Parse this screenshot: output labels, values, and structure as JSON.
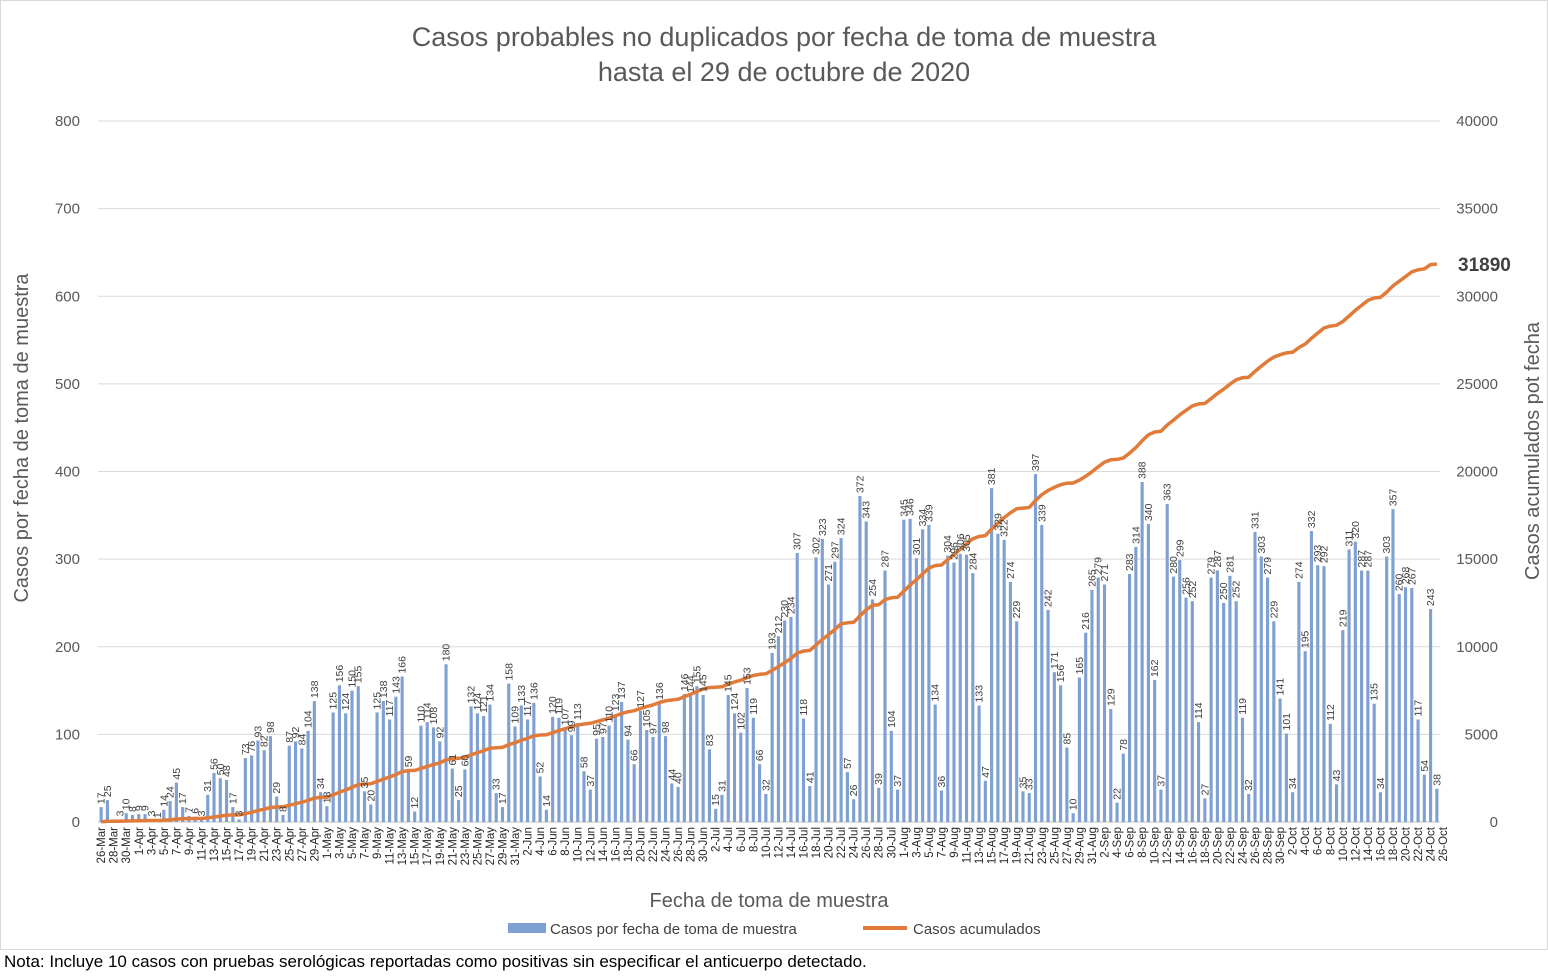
{
  "chart_data": {
    "type": "bar",
    "title_line1": "Casos probables no duplicados por fecha de toma de muestra",
    "title_line2": "hasta el 29 de octubre de 2020",
    "xlabel": "Fecha de toma de muestra",
    "ylabel_left": "Casos por fecha de toma de muestra",
    "ylabel_right": "Casos acumulados pot fecha",
    "ylim_left": [
      0,
      800
    ],
    "ylim_right": [
      0,
      40000
    ],
    "yticks_left": [
      "0",
      "100",
      "200",
      "300",
      "400",
      "500",
      "600",
      "700",
      "800"
    ],
    "yticks_right": [
      "0",
      "5000",
      "10000",
      "15000",
      "20000",
      "25000",
      "30000",
      "35000",
      "40000"
    ],
    "start_date": "2020-03-26",
    "x_tick_labels": [
      "26-Mar",
      "28-Mar",
      "30-Mar",
      "1-Apr",
      "3-Apr",
      "5-Apr",
      "7-Apr",
      "9-Apr",
      "11-Apr",
      "13-Apr",
      "15-Apr",
      "17-Apr",
      "19-Apr",
      "21-Apr",
      "23-Apr",
      "25-Apr",
      "27-Apr",
      "29-Apr",
      "1-May",
      "3-May",
      "5-May",
      "7-May",
      "9-May",
      "11-May",
      "13-May",
      "15-May",
      "17-May",
      "19-May",
      "21-May",
      "23-May",
      "25-May",
      "27-May",
      "29-May",
      "31-May",
      "2-Jun",
      "4-Jun",
      "6-Jun",
      "8-Jun",
      "10-Jun",
      "12-Jun",
      "14-Jun",
      "16-Jun",
      "18-Jun",
      "20-Jun",
      "22-Jun",
      "24-Jun",
      "26-Jun",
      "28-Jun",
      "30-Jun",
      "2-Jul",
      "4-Jul",
      "6-Jul",
      "8-Jul",
      "10-Jul",
      "12-Jul",
      "14-Jul",
      "16-Jul",
      "18-Jul",
      "20-Jul",
      "22-Jul",
      "24-Jul",
      "26-Jul",
      "28-Jul",
      "30-Jul",
      "1-Aug",
      "3-Aug",
      "5-Aug",
      "7-Aug",
      "9-Aug",
      "11-Aug",
      "13-Aug",
      "15-Aug",
      "17-Aug",
      "19-Aug",
      "21-Aug",
      "23-Aug",
      "25-Aug",
      "27-Aug",
      "29-Aug",
      "31-Aug",
      "2-Sep",
      "4-Sep",
      "6-Sep",
      "8-Sep",
      "10-Sep",
      "12-Sep",
      "14-Sep",
      "16-Sep",
      "18-Sep",
      "20-Sep",
      "22-Sep",
      "24-Sep",
      "26-Sep",
      "28-Sep",
      "30-Sep",
      "2-Oct",
      "4-Oct",
      "6-Oct",
      "8-Oct",
      "10-Oct",
      "12-Oct",
      "14-Oct",
      "16-Oct",
      "18-Oct",
      "20-Oct",
      "22-Oct",
      "24-Oct",
      "26-Oct"
    ],
    "series": [
      {
        "name": "Casos por fecha de toma de muestra",
        "type": "bar",
        "color": "#7fa0d2",
        "values": [
          17,
          25,
          0,
          3,
          10,
          8,
          9,
          9,
          3,
          1,
          14,
          24,
          45,
          17,
          7,
          6,
          3,
          31,
          56,
          50,
          48,
          17,
          3,
          73,
          76,
          93,
          82,
          98,
          29,
          8,
          87,
          92,
          84,
          104,
          138,
          34,
          18,
          125,
          156,
          124,
          150,
          155,
          35,
          20,
          125,
          138,
          117,
          143,
          166,
          59,
          12,
          110,
          114,
          108,
          92,
          180,
          61,
          25,
          60,
          132,
          124,
          121,
          134,
          33,
          17,
          158,
          109,
          133,
          117,
          136,
          52,
          14,
          120,
          119,
          107,
          99,
          113,
          58,
          37,
          95,
          97,
          110,
          123,
          137,
          94,
          66,
          127,
          105,
          97,
          136,
          98,
          44,
          40,
          146,
          144,
          155,
          145,
          83,
          15,
          31,
          145,
          124,
          102,
          153,
          119,
          66,
          32,
          193,
          212,
          230,
          234,
          307,
          118,
          41,
          302,
          323,
          271,
          297,
          324,
          57,
          26,
          372,
          343,
          254,
          39,
          287,
          104,
          37,
          345,
          346,
          301,
          334,
          339,
          134,
          36,
          304,
          296,
          306,
          305,
          284,
          133,
          47,
          381,
          329,
          322,
          274,
          229,
          35,
          33,
          397,
          339,
          242,
          171,
          156,
          85,
          10,
          165,
          216,
          265,
          279,
          271,
          129,
          22,
          78,
          283,
          314,
          388,
          340,
          162,
          37,
          363,
          280,
          299,
          256,
          252,
          114,
          27,
          279,
          287,
          250,
          281,
          252,
          119,
          32,
          331,
          303,
          279,
          229,
          141,
          101,
          34,
          274,
          195,
          332,
          293,
          292,
          112,
          43,
          219,
          311,
          320,
          287,
          287,
          135,
          34,
          303,
          357,
          260,
          268,
          267,
          117,
          54,
          243,
          38
        ]
      },
      {
        "name": "Casos acumulados",
        "type": "line",
        "color": "#e07b39"
      }
    ],
    "final_cumulative_label": "31890",
    "legend_position": "bottom-center",
    "grid": true
  },
  "footnote": "Nota: Incluye 10 casos con pruebas serológicas reportadas como positivas sin especificar el anticuerpo detectado."
}
